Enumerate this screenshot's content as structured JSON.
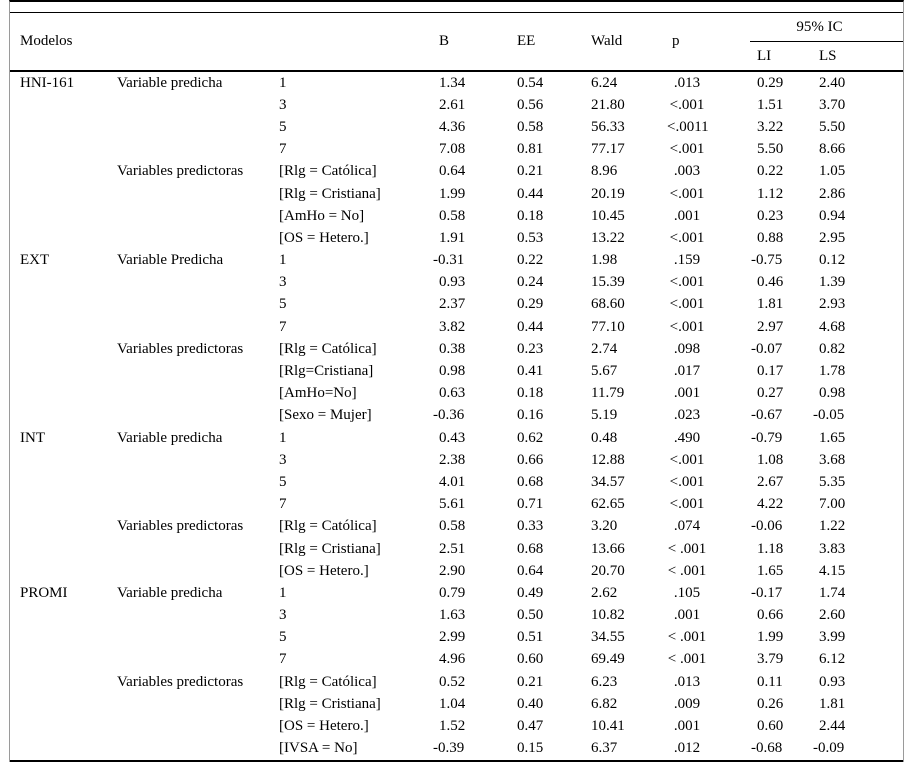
{
  "colors": {
    "background": "#ffffff",
    "text": "#000000",
    "rule": "#000000",
    "frame_side": "#9a9a9a"
  },
  "table": {
    "header": {
      "modelos": "Modelos",
      "b": "B",
      "ee": "EE",
      "wald": "Wald",
      "p": "p",
      "ic95": "95% IC",
      "li": "LI",
      "ls": "LS"
    },
    "blocks": [
      {
        "model": "HNI-161",
        "groups": [
          {
            "label": "Variable predicha",
            "rows": [
              {
                "pred": "1",
                "b": "1.34",
                "ee": "0.54",
                "wald": "6.24",
                "p": ".013",
                "li": "0.29",
                "ls": "2.40"
              },
              {
                "pred": "3",
                "b": "2.61",
                "ee": "0.56",
                "wald": "21.80",
                "p": "<.001",
                "li": "1.51",
                "ls": "3.70"
              },
              {
                "pred": "5",
                "b": "4.36",
                "ee": "0.58",
                "wald": "56.33",
                "p": "<.0011",
                "li": "3.22",
                "ls": "5.50"
              },
              {
                "pred": "7",
                "b": "7.08",
                "ee": "0.81",
                "wald": "77.17",
                "p": "<.001",
                "li": "5.50",
                "ls": "8.66"
              }
            ]
          },
          {
            "label": "Variables predictoras",
            "rows": [
              {
                "pred": "[Rlg = Católica]",
                "b": "0.64",
                "ee": "0.21",
                "wald": "8.96",
                "p": ".003",
                "li": "0.22",
                "ls": "1.05"
              },
              {
                "pred": "[Rlg = Cristiana]",
                "b": "1.99",
                "ee": "0.44",
                "wald": "20.19",
                "p": "<.001",
                "li": "1.12",
                "ls": "2.86"
              },
              {
                "pred": "[AmHo = No]",
                "b": "0.58",
                "ee": "0.18",
                "wald": "10.45",
                "p": ".001",
                "li": "0.23",
                "ls": "0.94"
              },
              {
                "pred": "[OS = Hetero.]",
                "b": "1.91",
                "ee": "0.53",
                "wald": "13.22",
                "p": "<.001",
                "li": "0.88",
                "ls": "2.95"
              }
            ]
          }
        ]
      },
      {
        "model": "EXT",
        "groups": [
          {
            "label": "Variable Predicha",
            "rows": [
              {
                "pred": "1",
                "b": "-0.31",
                "ee": "0.22",
                "wald": "1.98",
                "p": ".159",
                "li": "-0.75",
                "ls": "0.12"
              },
              {
                "pred": "3",
                "b": "0.93",
                "ee": "0.24",
                "wald": "15.39",
                "p": "<.001",
                "li": "0.46",
                "ls": "1.39"
              },
              {
                "pred": "5",
                "b": "2.37",
                "ee": "0.29",
                "wald": "68.60",
                "p": "<.001",
                "li": "1.81",
                "ls": "2.93"
              },
              {
                "pred": "7",
                "b": "3.82",
                "ee": "0.44",
                "wald": "77.10",
                "p": "<.001",
                "li": "2.97",
                "ls": "4.68"
              }
            ]
          },
          {
            "label": "Variables predictoras",
            "rows": [
              {
                "pred": "[Rlg = Católica]",
                "b": "0.38",
                "ee": "0.23",
                "wald": "2.74",
                "p": ".098",
                "li": "-0.07",
                "ls": "0.82"
              },
              {
                "pred": "[Rlg=Cristiana]",
                "b": "0.98",
                "ee": "0.41",
                "wald": "5.67",
                "p": ".017",
                "li": "0.17",
                "ls": "1.78"
              },
              {
                "pred": "[AmHo=No]",
                "b": "0.63",
                "ee": "0.18",
                "wald": "11.79",
                "p": ".001",
                "li": "0.27",
                "ls": "0.98"
              },
              {
                "pred": "[Sexo = Mujer]",
                "b": "-0.36",
                "ee": "0.16",
                "wald": "5.19",
                "p": ".023",
                "li": "-0.67",
                "ls": "-0.05"
              }
            ]
          }
        ]
      },
      {
        "model": "INT",
        "groups": [
          {
            "label": "Variable predicha",
            "rows": [
              {
                "pred": "1",
                "b": "0.43",
                "ee": "0.62",
                "wald": "0.48",
                "p": ".490",
                "li": "-0.79",
                "ls": "1.65"
              },
              {
                "pred": "3",
                "b": "2.38",
                "ee": "0.66",
                "wald": "12.88",
                "p": "<.001",
                "li": "1.08",
                "ls": "3.68"
              },
              {
                "pred": "5",
                "b": "4.01",
                "ee": "0.68",
                "wald": "34.57",
                "p": "<.001",
                "li": "2.67",
                "ls": "5.35"
              },
              {
                "pred": "7",
                "b": "5.61",
                "ee": "0.71",
                "wald": "62.65",
                "p": "<.001",
                "li": "4.22",
                "ls": "7.00"
              }
            ]
          },
          {
            "label": "Variables predictoras",
            "rows": [
              {
                "pred": "[Rlg = Católica]",
                "b": "0.58",
                "ee": "0.33",
                "wald": "3.20",
                "p": ".074",
                "li": "-0.06",
                "ls": "1.22"
              },
              {
                "pred": "[Rlg = Cristiana]",
                "b": "2.51",
                "ee": "0.68",
                "wald": "13.66",
                "p": "< .001",
                "li": "1.18",
                "ls": "3.83"
              },
              {
                "pred": "[OS = Hetero.]",
                "b": "2.90",
                "ee": "0.64",
                "wald": "20.70",
                "p": "< .001",
                "li": "1.65",
                "ls": "4.15"
              }
            ]
          }
        ]
      },
      {
        "model": "PROMI",
        "groups": [
          {
            "label": "Variable predicha",
            "rows": [
              {
                "pred": "1",
                "b": "0.79",
                "ee": "0.49",
                "wald": "2.62",
                "p": ".105",
                "li": "-0.17",
                "ls": "1.74"
              },
              {
                "pred": "3",
                "b": "1.63",
                "ee": "0.50",
                "wald": "10.82",
                "p": ".001",
                "li": "0.66",
                "ls": "2.60"
              },
              {
                "pred": "5",
                "b": "2.99",
                "ee": "0.51",
                "wald": "34.55",
                "p": "< .001",
                "li": "1.99",
                "ls": "3.99"
              },
              {
                "pred": "7",
                "b": "4.96",
                "ee": "0.60",
                "wald": "69.49",
                "p": "< .001",
                "li": "3.79",
                "ls": "6.12"
              }
            ]
          },
          {
            "label": "Variables predictoras",
            "rows": [
              {
                "pred": "[Rlg = Católica]",
                "b": "0.52",
                "ee": "0.21",
                "wald": "6.23",
                "p": ".013",
                "li": "0.11",
                "ls": "0.93"
              },
              {
                "pred": "[Rlg = Cristiana]",
                "b": "1.04",
                "ee": "0.40",
                "wald": "6.82",
                "p": ".009",
                "li": "0.26",
                "ls": "1.81"
              },
              {
                "pred": "[OS = Hetero.]",
                "b": "1.52",
                "ee": "0.47",
                "wald": "10.41",
                "p": ".001",
                "li": "0.60",
                "ls": "2.44"
              },
              {
                "pred": "[IVSA = No]",
                "b": "-0.39",
                "ee": "0.15",
                "wald": "6.37",
                "p": ".012",
                "li": "-0.68",
                "ls": "-0.09"
              }
            ]
          }
        ]
      }
    ]
  }
}
